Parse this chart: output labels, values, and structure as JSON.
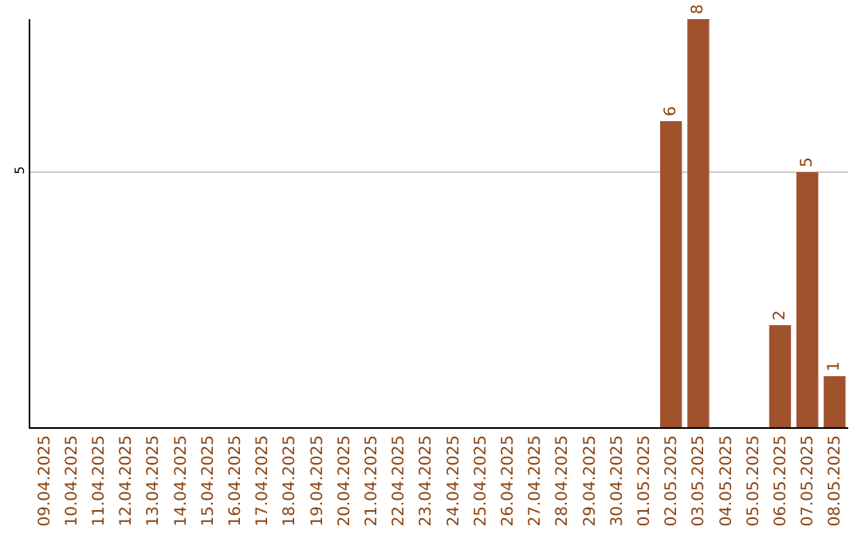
{
  "chart_data": {
    "type": "bar",
    "categories": [
      "09.04.2025",
      "10.04.2025",
      "11.04.2025",
      "12.04.2025",
      "13.04.2025",
      "14.04.2025",
      "15.04.2025",
      "16.04.2025",
      "17.04.2025",
      "18.04.2025",
      "19.04.2025",
      "20.04.2025",
      "21.04.2025",
      "22.04.2025",
      "23.04.2025",
      "24.04.2025",
      "25.04.2025",
      "26.04.2025",
      "27.04.2025",
      "28.04.2025",
      "29.04.2025",
      "30.04.2025",
      "01.05.2025",
      "02.05.2025",
      "03.05.2025",
      "04.05.2025",
      "05.05.2025",
      "06.05.2025",
      "07.05.2025",
      "08.05.2025"
    ],
    "values": [
      null,
      null,
      null,
      null,
      null,
      null,
      null,
      null,
      null,
      null,
      null,
      null,
      null,
      null,
      null,
      null,
      null,
      null,
      null,
      null,
      null,
      null,
      null,
      6,
      8,
      null,
      null,
      2,
      5,
      1
    ],
    "data_labels": true,
    "color": "#a0522d",
    "ylim": [
      0,
      8
    ],
    "yticks": [
      5
    ],
    "grid": "y",
    "legend": false
  }
}
